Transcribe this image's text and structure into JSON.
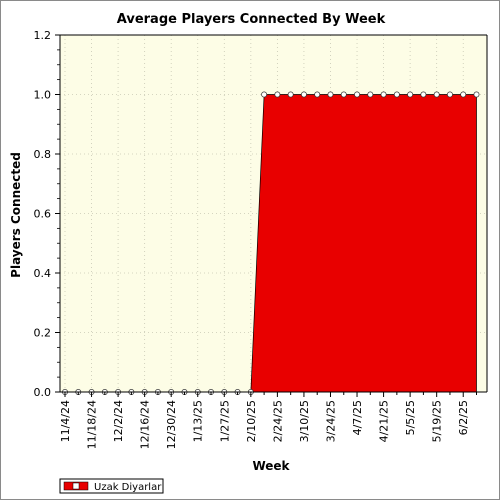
{
  "chart_data": {
    "type": "area",
    "title": "Average Players Connected By Week",
    "xlabel": "Week",
    "ylabel": "Players Connected",
    "ylim": [
      0,
      1.2
    ],
    "y_ticks": [
      "0.0",
      "0.2",
      "0.4",
      "0.6",
      "0.8",
      "1.0",
      "1.2"
    ],
    "x": [
      "11/4/24",
      "11/11/24",
      "11/18/24",
      "11/25/24",
      "12/2/24",
      "12/9/24",
      "12/16/24",
      "12/23/24",
      "12/30/24",
      "1/6/25",
      "1/13/25",
      "1/20/25",
      "1/27/25",
      "2/3/25",
      "2/10/25",
      "2/17/25",
      "2/24/25",
      "3/3/25",
      "3/10/25",
      "3/17/25",
      "3/24/25",
      "3/31/25",
      "4/7/25",
      "4/14/25",
      "4/21/25",
      "4/28/25",
      "5/5/25",
      "5/12/25",
      "5/19/25",
      "5/26/25",
      "6/2/25",
      "6/9/25"
    ],
    "x_tick_labels": [
      "11/4/24",
      "11/18/24",
      "12/2/24",
      "12/16/24",
      "12/30/24",
      "1/13/25",
      "1/27/25",
      "2/10/25",
      "2/24/25",
      "3/10/25",
      "3/24/25",
      "4/7/25",
      "4/21/25",
      "5/5/25",
      "5/19/25",
      "6/2/25"
    ],
    "series": [
      {
        "name": "Uzak Diyarlar",
        "color": "#e80000",
        "values": [
          0,
          0,
          0,
          0,
          0,
          0,
          0,
          0,
          0,
          0,
          0,
          0,
          0,
          0,
          0,
          1,
          1,
          1,
          1,
          1,
          1,
          1,
          1,
          1,
          1,
          1,
          1,
          1,
          1,
          1,
          1,
          1
        ]
      }
    ],
    "grid": true,
    "legend_position": "bottom-left",
    "plot_background": "#fdfde6"
  }
}
